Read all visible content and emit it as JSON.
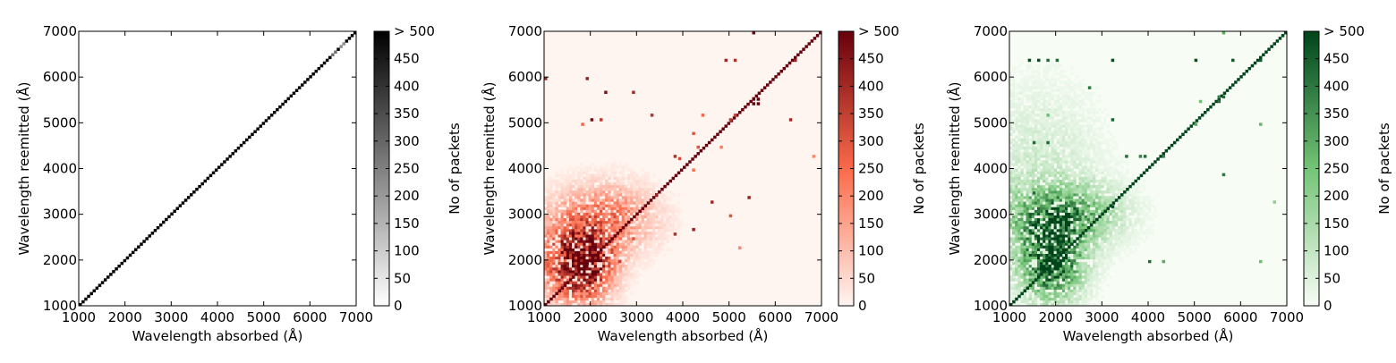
{
  "chart_data": [
    {
      "type": "heatmap",
      "colormap": "Greys",
      "colors": {
        "low": "#ffffff",
        "high": "#000000"
      },
      "xlabel": "Wavelength absorbed (Å)",
      "ylabel": "Wavelength reemitted (Å)",
      "xlim": [
        1000,
        7000
      ],
      "ylim": [
        1000,
        7000
      ],
      "xticks": [
        "1000",
        "2000",
        "3000",
        "4000",
        "5000",
        "6000",
        "7000"
      ],
      "yticks": [
        "1000",
        "2000",
        "3000",
        "4000",
        "5000",
        "6000",
        "7000"
      ],
      "colorbar": {
        "label": "No of packets",
        "range": [
          0,
          500
        ],
        "ticks": [
          "0",
          "50",
          "100",
          "150",
          "200",
          "250",
          "300",
          "350",
          "400",
          "450",
          "> 500"
        ]
      },
      "description": "Only the diagonal is populated (absorbed = reemitted); counts saturate at > 500 except a few lighter cells near 6500 Å.",
      "diagonal_value": 500,
      "lighter_cells": [
        [
          6500,
          280
        ],
        [
          6700,
          220
        ]
      ],
      "clusters": [],
      "spots": []
    },
    {
      "type": "heatmap",
      "colormap": "Reds",
      "colors": {
        "low": "#fff5f0",
        "mid": "#fb6a4a",
        "high": "#67000d"
      },
      "xlabel": "Wavelength absorbed (Å)",
      "ylabel": "Wavelength reemitted (Å)",
      "xlim": [
        1000,
        7000
      ],
      "ylim": [
        1000,
        7000
      ],
      "xticks": [
        "1000",
        "2000",
        "3000",
        "4000",
        "5000",
        "6000",
        "7000"
      ],
      "yticks": [
        "1000",
        "2000",
        "3000",
        "4000",
        "5000",
        "6000",
        "7000"
      ],
      "colorbar": {
        "label": "No of packets",
        "range": [
          0,
          500
        ],
        "ticks": [
          "0",
          "50",
          "100",
          "150",
          "200",
          "250",
          "300",
          "350",
          "400",
          "450",
          "> 500"
        ]
      },
      "description": "Strong diagonal with a dense cluster between 1000 and 3500 Å; isolated bright features at ~5600 Å and scattered off-diagonal spots.",
      "diagonal_value": 500,
      "lighter_cells": [],
      "clusters": [
        {
          "x": 1900,
          "y": 1900,
          "sx": 400,
          "sy": 500,
          "peak": 500
        },
        {
          "x": 2300,
          "y": 2900,
          "sx": 700,
          "sy": 500,
          "peak": 220
        },
        {
          "x": 1300,
          "y": 2000,
          "sx": 350,
          "sy": 600,
          "peak": 180
        }
      ],
      "spots": [
        [
          5600,
          5550,
          500
        ],
        [
          5500,
          5550,
          500
        ],
        [
          5600,
          5450,
          500
        ],
        [
          5500,
          5450,
          500
        ],
        [
          3400,
          3450,
          420
        ],
        [
          3800,
          4300,
          380
        ],
        [
          3900,
          4250,
          320
        ],
        [
          5000,
          5100,
          360
        ],
        [
          5100,
          5200,
          340
        ],
        [
          4300,
          4500,
          300
        ],
        [
          2000,
          5100,
          480
        ],
        [
          2200,
          5100,
          360
        ],
        [
          2300,
          5700,
          460
        ],
        [
          2900,
          5700,
          400
        ],
        [
          1900,
          6000,
          420
        ],
        [
          3300,
          5200,
          380
        ],
        [
          4400,
          5200,
          260
        ],
        [
          4900,
          6400,
          400
        ],
        [
          5100,
          6400,
          380
        ],
        [
          6400,
          6400,
          420
        ],
        [
          6300,
          5100,
          400
        ],
        [
          4200,
          4800,
          300
        ],
        [
          4800,
          4500,
          220
        ],
        [
          3800,
          2600,
          380
        ],
        [
          4200,
          2700,
          420
        ],
        [
          4600,
          3300,
          400
        ],
        [
          5000,
          3000,
          300
        ],
        [
          5400,
          3400,
          420
        ],
        [
          4200,
          4000,
          240
        ],
        [
          1800,
          5000,
          260
        ],
        [
          1000,
          6000,
          420
        ],
        [
          5500,
          7000,
          480
        ],
        [
          5200,
          2300,
          200
        ],
        [
          2600,
          2000,
          340
        ],
        [
          2900,
          2500,
          300
        ],
        [
          6800,
          4300,
          200
        ]
      ]
    },
    {
      "type": "heatmap",
      "colormap": "Greens",
      "colors": {
        "low": "#f7fcf5",
        "mid": "#74c476",
        "high": "#00441b"
      },
      "xlabel": "Wavelength absorbed (Å)",
      "ylabel": "Wavelength reemitted (Å)",
      "xlim": [
        1000,
        7000
      ],
      "ylim": [
        1000,
        7000
      ],
      "xticks": [
        "1000",
        "2000",
        "3000",
        "4000",
        "5000",
        "6000",
        "7000"
      ],
      "yticks": [
        "1000",
        "2000",
        "3000",
        "4000",
        "5000",
        "6000",
        "7000"
      ],
      "colorbar": {
        "label": "No of packets",
        "range": [
          0,
          500
        ],
        "ticks": [
          "0",
          "50",
          "100",
          "150",
          "200",
          "250",
          "300",
          "350",
          "400",
          "450",
          "> 500"
        ]
      },
      "description": "Diagonal plus dense cluster at 1500-2500 Å; horizontal bands of reemission near 5100, 5500 and 6300 Å; vertical streaks at ~5500 Å.",
      "diagonal_value": 500,
      "lighter_cells": [],
      "clusters": [
        {
          "x": 1900,
          "y": 2000,
          "sx": 450,
          "sy": 550,
          "peak": 500
        },
        {
          "x": 2100,
          "y": 3000,
          "sx": 800,
          "sy": 450,
          "peak": 300
        },
        {
          "x": 1600,
          "y": 4000,
          "sx": 900,
          "sy": 1200,
          "peak": 70
        }
      ],
      "spots": [
        [
          5500,
          5500,
          420
        ],
        [
          5600,
          5600,
          420
        ],
        [
          5500,
          5600,
          380
        ],
        [
          5100,
          5500,
          260
        ],
        [
          4300,
          4300,
          380
        ],
        [
          3200,
          3200,
          480
        ],
        [
          3800,
          4300,
          380
        ],
        [
          3200,
          5100,
          440
        ],
        [
          1400,
          6400,
          480
        ],
        [
          1600,
          6400,
          480
        ],
        [
          1800,
          6400,
          420
        ],
        [
          2000,
          6400,
          420
        ],
        [
          3200,
          6400,
          480
        ],
        [
          5000,
          6400,
          480
        ],
        [
          5800,
          6400,
          460
        ],
        [
          6400,
          6400,
          460
        ],
        [
          1500,
          4600,
          420
        ],
        [
          1800,
          4600,
          420
        ],
        [
          3500,
          4300,
          420
        ],
        [
          3900,
          4300,
          420
        ],
        [
          5000,
          5000,
          300
        ],
        [
          6400,
          5000,
          280
        ],
        [
          1800,
          5200,
          260
        ],
        [
          2700,
          5800,
          400
        ],
        [
          4000,
          2000,
          420
        ],
        [
          4300,
          2000,
          300
        ],
        [
          6400,
          2000,
          260
        ],
        [
          5600,
          3900,
          400
        ],
        [
          1500,
          3500,
          420
        ],
        [
          2300,
          3300,
          380
        ],
        [
          5600,
          7000,
          300
        ],
        [
          6700,
          3300,
          200
        ]
      ]
    }
  ]
}
